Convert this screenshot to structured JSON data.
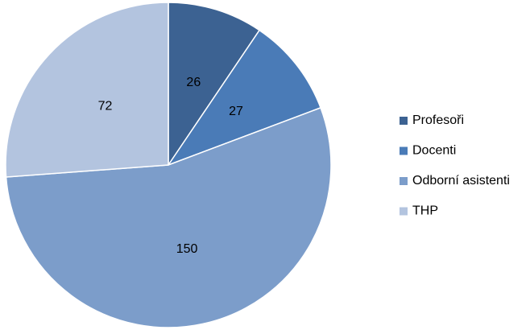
{
  "chart_data": {
    "type": "pie",
    "categories": [
      "Profesoři",
      "Docenti",
      "Odborní asistenti",
      "THP"
    ],
    "values": [
      26,
      27,
      150,
      72
    ],
    "colors": [
      "#3c6292",
      "#4a7bb7",
      "#7c9dca",
      "#b3c4df"
    ],
    "legend": "right"
  }
}
